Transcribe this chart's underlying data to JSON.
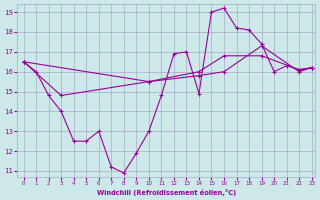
{
  "xlabel": "Windchill (Refroidissement éolien,°C)",
  "bg_color": "#cce8e8",
  "line_color": "#990099",
  "grid_color": "#aaaacc",
  "xlim_min": -0.5,
  "xlim_max": 23.3,
  "ylim_min": 10.7,
  "ylim_max": 19.4,
  "xticks": [
    0,
    1,
    2,
    3,
    4,
    5,
    6,
    7,
    8,
    9,
    10,
    11,
    12,
    13,
    14,
    15,
    16,
    17,
    18,
    19,
    20,
    21,
    22,
    23
  ],
  "yticks": [
    11,
    12,
    13,
    14,
    15,
    16,
    17,
    18,
    19
  ],
  "line1": {
    "x": [
      0,
      1,
      2,
      3,
      4,
      5,
      6,
      7,
      8,
      9,
      10,
      11,
      12,
      13,
      14,
      15,
      16,
      17,
      18,
      19,
      20,
      21,
      22,
      23
    ],
    "y": [
      16.5,
      16.0,
      14.8,
      14.0,
      12.5,
      12.5,
      13.0,
      11.2,
      10.9,
      11.9,
      13.0,
      14.8,
      16.9,
      17.0,
      14.9,
      19.0,
      19.2,
      18.2,
      18.1,
      17.4,
      16.0,
      16.3,
      16.1,
      16.2
    ]
  },
  "line2": {
    "x": [
      0,
      3,
      10,
      14,
      16,
      19,
      22,
      23
    ],
    "y": [
      16.5,
      14.8,
      15.5,
      15.8,
      16.0,
      17.3,
      16.0,
      16.2
    ]
  },
  "line3": {
    "x": [
      0,
      10,
      14,
      16,
      19,
      22,
      23
    ],
    "y": [
      16.5,
      15.5,
      16.0,
      16.8,
      16.8,
      16.1,
      16.2
    ]
  }
}
